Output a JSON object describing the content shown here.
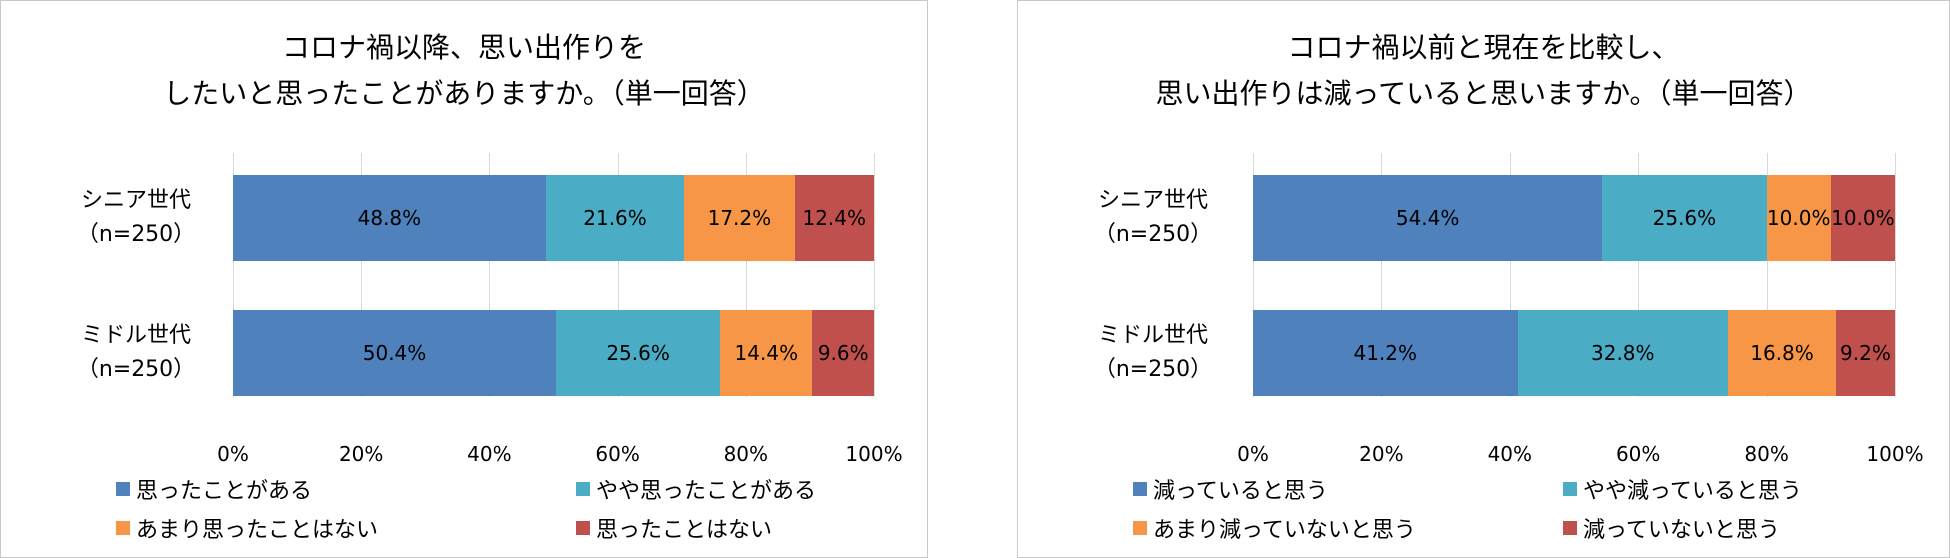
{
  "chart_data": [
    {
      "type": "bar",
      "orientation": "horizontal",
      "stacked": true,
      "title_lines": [
        "コロナ禍以降、思い出作りを",
        "したいと思ったことがありますか。（単一回答）"
      ],
      "categories": [
        {
          "name": "シニア世代",
          "n": "（n=250）"
        },
        {
          "name": "ミドル世代",
          "n": "（n=250）"
        }
      ],
      "series": [
        {
          "name": "思ったことがある",
          "color": "#4f81bd",
          "values": [
            48.8,
            50.4
          ],
          "labels": [
            "48.8%",
            "50.4%"
          ]
        },
        {
          "name": "やや思ったことがある",
          "color": "#4bacc6",
          "values": [
            21.6,
            25.6
          ],
          "labels": [
            "21.6%",
            "25.6%"
          ]
        },
        {
          "name": "あまり思ったことはない",
          "color": "#f79646",
          "values": [
            17.2,
            14.4
          ],
          "labels": [
            "17.2%",
            "14.4%"
          ]
        },
        {
          "name": "思ったことはない",
          "color": "#c0504d",
          "values": [
            12.4,
            9.6
          ],
          "labels": [
            "12.4%",
            "9.6%"
          ]
        }
      ],
      "xlim": [
        0,
        100
      ],
      "xticks": [
        "0%",
        "20%",
        "40%",
        "60%",
        "80%",
        "100%"
      ],
      "grid": true,
      "legend_position": "bottom"
    },
    {
      "type": "bar",
      "orientation": "horizontal",
      "stacked": true,
      "title_lines": [
        "コロナ禍以前と現在を比較し、",
        "思い出作りは減っていると思いますか。（単一回答）"
      ],
      "categories": [
        {
          "name": "シニア世代",
          "n": "（n=250）"
        },
        {
          "name": "ミドル世代",
          "n": "（n=250）"
        }
      ],
      "series": [
        {
          "name": "減っていると思う",
          "color": "#4f81bd",
          "values": [
            54.4,
            41.2
          ],
          "labels": [
            "54.4%",
            "41.2%"
          ]
        },
        {
          "name": "やや減っていると思う",
          "color": "#4bacc6",
          "values": [
            25.6,
            32.8
          ],
          "labels": [
            "25.6%",
            "32.8%"
          ]
        },
        {
          "name": "あまり減っていないと思う",
          "color": "#f79646",
          "values": [
            10.0,
            16.8
          ],
          "labels": [
            "10.0%",
            "16.8%"
          ]
        },
        {
          "name": "減っていないと思う",
          "color": "#c0504d",
          "values": [
            10.0,
            9.2
          ],
          "labels": [
            "10.0%",
            "9.2%"
          ]
        }
      ],
      "xlim": [
        0,
        100
      ],
      "xticks": [
        "0%",
        "20%",
        "40%",
        "60%",
        "80%",
        "100%"
      ],
      "grid": true,
      "legend_position": "bottom"
    }
  ]
}
